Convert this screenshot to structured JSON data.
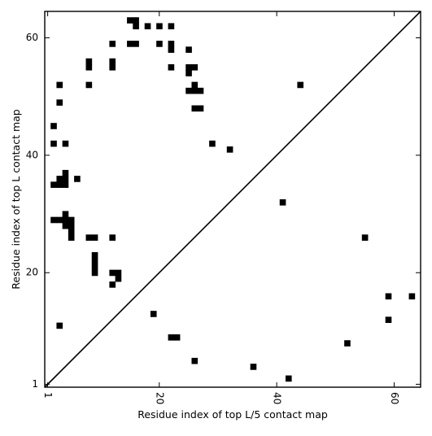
{
  "chart_data": {
    "type": "heatmap",
    "subtype": "contact-map",
    "title": "",
    "xlabel": "Residue index of top L/5 contact map",
    "ylabel": "Residue index of top L contact map",
    "xlim": [
      0.5,
      64.5
    ],
    "ylim": [
      0.5,
      64.5
    ],
    "x_ticks": [
      1,
      20,
      40,
      60
    ],
    "y_ticks": [
      1,
      20,
      40,
      60
    ],
    "x_tick_labels": [
      "1",
      "20",
      "40",
      "60"
    ],
    "y_tick_labels": [
      "1",
      "20",
      "40",
      "60"
    ],
    "x_tick_label_rotation": -90,
    "diagonal": true,
    "grid": false,
    "cell_color": "#000000",
    "upper_triangle_points": [
      [
        15,
        63
      ],
      [
        16,
        63
      ],
      [
        16,
        62
      ],
      [
        18,
        62
      ],
      [
        20,
        62
      ],
      [
        22,
        62
      ],
      [
        12,
        59
      ],
      [
        15,
        59
      ],
      [
        16,
        59
      ],
      [
        20,
        59
      ],
      [
        22,
        59
      ],
      [
        22,
        58
      ],
      [
        25,
        58
      ],
      [
        8,
        56
      ],
      [
        12,
        56
      ],
      [
        8,
        55
      ],
      [
        12,
        55
      ],
      [
        22,
        55
      ],
      [
        25,
        55
      ],
      [
        26,
        55
      ],
      [
        25,
        54
      ],
      [
        3,
        52
      ],
      [
        8,
        52
      ],
      [
        26,
        52
      ],
      [
        44,
        52
      ],
      [
        25,
        51
      ],
      [
        26,
        51
      ],
      [
        27,
        51
      ],
      [
        3,
        49
      ],
      [
        26,
        48
      ],
      [
        27,
        48
      ],
      [
        2,
        45
      ],
      [
        2,
        42
      ],
      [
        4,
        42
      ],
      [
        29,
        42
      ],
      [
        32,
        41
      ],
      [
        4,
        37
      ],
      [
        3,
        36
      ],
      [
        4,
        36
      ],
      [
        6,
        36
      ],
      [
        2,
        35
      ],
      [
        3,
        35
      ],
      [
        4,
        35
      ],
      [
        41,
        32
      ],
      [
        4,
        30
      ],
      [
        2,
        29
      ],
      [
        3,
        29
      ],
      [
        4,
        29
      ],
      [
        5,
        29
      ],
      [
        4,
        28
      ],
      [
        5,
        28
      ],
      [
        5,
        27
      ],
      [
        5,
        26
      ],
      [
        8,
        26
      ],
      [
        9,
        26
      ],
      [
        12,
        26
      ],
      [
        55,
        26
      ],
      [
        9,
        23
      ],
      [
        9,
        22
      ],
      [
        9,
        21
      ],
      [
        9,
        20
      ],
      [
        12,
        20
      ],
      [
        13,
        20
      ],
      [
        13,
        19
      ],
      [
        12,
        18
      ]
    ],
    "lower_triangle_points": [
      [
        59,
        16
      ],
      [
        63,
        16
      ],
      [
        19,
        13
      ],
      [
        59,
        12
      ],
      [
        3,
        11
      ],
      [
        22,
        9
      ],
      [
        23,
        9
      ],
      [
        52,
        8
      ],
      [
        26,
        5
      ],
      [
        36,
        4
      ],
      [
        42,
        2
      ]
    ]
  }
}
